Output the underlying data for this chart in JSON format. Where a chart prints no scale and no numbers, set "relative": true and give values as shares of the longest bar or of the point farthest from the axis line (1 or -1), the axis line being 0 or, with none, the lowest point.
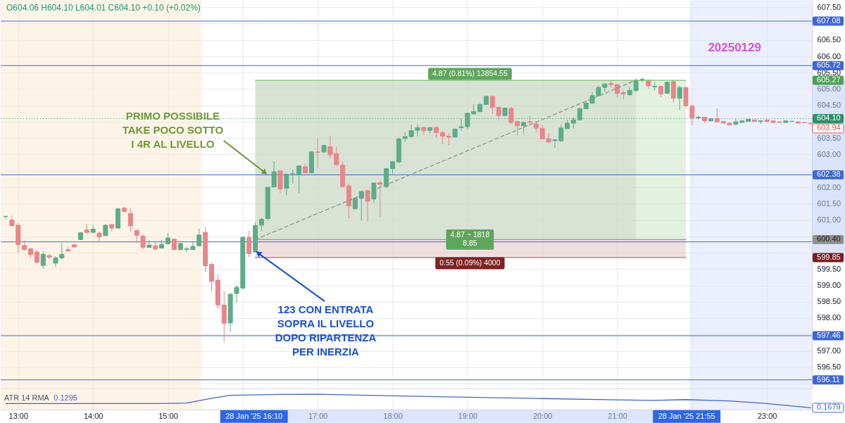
{
  "chart_data": [
    {
      "type": "candlestick",
      "x": [
        "2025-01-28T12:50",
        "2025-01-28T12:55",
        "2025-01-28T13:00",
        "2025-01-28T13:05",
        "2025-01-28T13:10",
        "2025-01-28T13:15",
        "2025-01-28T13:20",
        "2025-01-28T13:25",
        "2025-01-28T13:30",
        "2025-01-28T13:35",
        "2025-01-28T13:40",
        "2025-01-28T13:45",
        "2025-01-28T13:50",
        "2025-01-28T13:55",
        "2025-01-28T14:00",
        "2025-01-28T14:05",
        "2025-01-28T14:10",
        "2025-01-28T14:15",
        "2025-01-28T14:20",
        "2025-01-28T14:25",
        "2025-01-28T14:30",
        "2025-01-28T14:35",
        "2025-01-28T14:40",
        "2025-01-28T14:45",
        "2025-01-28T14:50",
        "2025-01-28T14:55",
        "2025-01-28T15:00",
        "2025-01-28T15:05",
        "2025-01-28T15:10",
        "2025-01-28T15:15",
        "2025-01-28T15:20",
        "2025-01-28T15:25",
        "2025-01-28T15:30",
        "2025-01-28T15:35",
        "2025-01-28T15:40",
        "2025-01-28T15:45",
        "2025-01-28T15:50",
        "2025-01-28T15:55",
        "2025-01-28T16:00",
        "2025-01-28T16:05",
        "2025-01-28T16:10",
        "2025-01-28T16:15",
        "2025-01-28T16:20",
        "2025-01-28T16:25",
        "2025-01-28T16:30",
        "2025-01-28T16:35",
        "2025-01-28T16:40",
        "2025-01-28T16:45",
        "2025-01-28T16:50",
        "2025-01-28T16:55",
        "2025-01-28T17:00",
        "2025-01-28T17:05",
        "2025-01-28T17:10",
        "2025-01-28T17:15",
        "2025-01-28T17:20",
        "2025-01-28T17:25",
        "2025-01-28T17:30",
        "2025-01-28T17:35",
        "2025-01-28T17:40",
        "2025-01-28T17:45",
        "2025-01-28T17:50",
        "2025-01-28T17:55",
        "2025-01-28T18:00",
        "2025-01-28T18:05",
        "2025-01-28T18:10",
        "2025-01-28T18:15",
        "2025-01-28T18:20",
        "2025-01-28T18:25",
        "2025-01-28T18:30",
        "2025-01-28T18:35",
        "2025-01-28T18:40",
        "2025-01-28T18:45",
        "2025-01-28T18:50",
        "2025-01-28T18:55",
        "2025-01-28T19:00",
        "2025-01-28T19:05",
        "2025-01-28T19:10",
        "2025-01-28T19:15",
        "2025-01-28T19:20",
        "2025-01-28T19:25",
        "2025-01-28T19:30",
        "2025-01-28T19:35",
        "2025-01-28T19:40",
        "2025-01-28T19:45",
        "2025-01-28T19:50",
        "2025-01-28T19:55",
        "2025-01-28T20:00",
        "2025-01-28T20:05",
        "2025-01-28T20:10",
        "2025-01-28T20:15",
        "2025-01-28T20:20",
        "2025-01-28T20:25",
        "2025-01-28T20:30",
        "2025-01-28T20:35",
        "2025-01-28T20:40",
        "2025-01-28T20:45",
        "2025-01-28T20:50",
        "2025-01-28T20:55",
        "2025-01-28T21:00",
        "2025-01-28T21:05",
        "2025-01-28T21:10",
        "2025-01-28T21:15",
        "2025-01-28T21:20",
        "2025-01-28T21:25",
        "2025-01-28T21:30",
        "2025-01-28T21:35",
        "2025-01-28T21:40",
        "2025-01-28T21:45",
        "2025-01-28T21:50",
        "2025-01-28T21:55",
        "2025-01-28T22:00",
        "2025-01-28T22:05",
        "2025-01-28T22:10",
        "2025-01-28T22:15",
        "2025-01-28T22:20",
        "2025-01-28T22:25",
        "2025-01-28T22:30",
        "2025-01-28T22:35",
        "2025-01-28T22:40",
        "2025-01-28T22:45",
        "2025-01-28T22:50",
        "2025-01-28T22:55",
        "2025-01-28T23:00",
        "2025-01-28T23:05",
        "2025-01-28T23:10",
        "2025-01-28T23:15",
        "2025-01-28T23:20",
        "2025-01-28T23:25",
        "2025-01-28T23:30",
        "2025-01-28T23:35"
      ],
      "ohlc": [
        [
          601.1,
          601.11,
          601.02,
          601.11
        ],
        [
          601.0,
          601.13,
          600.82,
          600.82
        ],
        [
          600.84,
          600.91,
          599.99,
          600.25
        ],
        [
          600.22,
          600.37,
          600.07,
          600.09
        ],
        [
          600.12,
          600.13,
          599.84,
          599.94
        ],
        [
          600.02,
          600.09,
          599.64,
          599.71
        ],
        [
          599.61,
          600.04,
          599.51,
          599.95
        ],
        [
          599.91,
          599.96,
          599.8,
          599.86
        ],
        [
          599.68,
          599.89,
          599.56,
          599.84
        ],
        [
          599.84,
          600.3,
          599.79,
          599.95
        ],
        [
          600.09,
          600.19,
          600.04,
          600.05
        ],
        [
          600.24,
          600.27,
          600.17,
          600.17
        ],
        [
          600.4,
          600.62,
          600.39,
          600.61
        ],
        [
          600.7,
          600.87,
          600.55,
          600.62
        ],
        [
          600.62,
          600.85,
          600.62,
          600.72
        ],
        [
          600.6,
          600.64,
          600.35,
          600.48
        ],
        [
          600.52,
          600.87,
          600.52,
          600.84
        ],
        [
          600.86,
          600.87,
          600.64,
          600.75
        ],
        [
          600.75,
          601.36,
          600.75,
          601.34
        ],
        [
          601.36,
          601.4,
          601.22,
          601.26
        ],
        [
          601.2,
          601.36,
          600.64,
          600.82
        ],
        [
          600.68,
          600.7,
          600.29,
          600.53
        ],
        [
          600.5,
          600.55,
          600.1,
          600.16
        ],
        [
          600.16,
          600.39,
          600.16,
          600.23
        ],
        [
          600.21,
          600.37,
          600.07,
          600.11
        ],
        [
          600.14,
          600.39,
          600.14,
          600.25
        ],
        [
          600.27,
          600.6,
          600.27,
          600.45
        ],
        [
          600.41,
          600.42,
          600.09,
          600.09
        ],
        [
          600.09,
          600.28,
          600.09,
          600.28
        ],
        [
          600.1,
          600.18,
          600.02,
          600.12
        ],
        [
          600.09,
          600.32,
          600.09,
          600.19
        ],
        [
          600.21,
          600.73,
          600.21,
          600.54
        ],
        [
          600.62,
          600.79,
          599.41,
          599.6
        ],
        [
          599.64,
          599.69,
          598.8,
          599.12
        ],
        [
          599.16,
          599.34,
          598.29,
          598.4
        ],
        [
          598.4,
          598.83,
          597.27,
          597.84
        ],
        [
          597.85,
          598.74,
          597.58,
          598.73
        ],
        [
          598.75,
          599.01,
          598.47,
          598.94
        ],
        [
          598.91,
          600.5,
          598.91,
          600.47
        ],
        [
          600.47,
          600.68,
          599.87,
          599.97
        ],
        [
          600.02,
          600.93,
          600.02,
          600.83
        ],
        [
          600.84,
          601.07,
          600.66,
          601.02
        ],
        [
          601.04,
          602.02,
          600.98,
          602.0
        ],
        [
          602.01,
          602.8,
          602.0,
          602.47
        ],
        [
          602.5,
          602.52,
          601.82,
          601.95
        ],
        [
          601.97,
          602.42,
          601.76,
          602.4
        ],
        [
          602.41,
          602.54,
          602.11,
          602.42
        ],
        [
          602.38,
          602.67,
          601.81,
          602.65
        ],
        [
          602.63,
          602.72,
          602.44,
          602.44
        ],
        [
          602.44,
          603.1,
          602.44,
          603.08
        ],
        [
          603.08,
          603.49,
          602.57,
          603.07
        ],
        [
          603.08,
          603.29,
          603.05,
          603.28
        ],
        [
          603.24,
          603.58,
          602.88,
          602.99
        ],
        [
          603.03,
          603.24,
          602.65,
          602.69
        ],
        [
          602.67,
          602.79,
          602.0,
          602.02
        ],
        [
          602.04,
          602.11,
          601.04,
          601.43
        ],
        [
          601.34,
          601.68,
          601.33,
          601.66
        ],
        [
          601.66,
          601.91,
          600.98,
          601.87
        ],
        [
          601.9,
          601.93,
          600.96,
          601.57
        ],
        [
          601.64,
          602.14,
          601.52,
          602.13
        ],
        [
          602.14,
          602.19,
          601.09,
          602.09
        ],
        [
          602.02,
          602.59,
          601.97,
          602.57
        ],
        [
          602.57,
          602.79,
          602.42,
          602.78
        ],
        [
          602.77,
          603.53,
          602.75,
          603.48
        ],
        [
          603.49,
          603.69,
          603.38,
          603.55
        ],
        [
          603.55,
          603.91,
          603.51,
          603.73
        ],
        [
          603.74,
          603.92,
          603.56,
          603.82
        ],
        [
          603.83,
          603.85,
          603.6,
          603.73
        ],
        [
          603.74,
          603.85,
          603.65,
          603.82
        ],
        [
          603.83,
          603.87,
          603.51,
          603.67
        ],
        [
          603.67,
          603.72,
          603.31,
          603.56
        ],
        [
          603.56,
          603.65,
          603.29,
          603.53
        ],
        [
          603.53,
          603.79,
          603.53,
          603.78
        ],
        [
          603.82,
          604.08,
          603.72,
          603.85
        ],
        [
          603.85,
          604.28,
          603.78,
          604.26
        ],
        [
          604.24,
          604.54,
          604.23,
          604.31
        ],
        [
          604.31,
          604.57,
          604.3,
          604.53
        ],
        [
          604.53,
          604.8,
          604.53,
          604.78
        ],
        [
          604.78,
          604.8,
          604.24,
          604.44
        ],
        [
          604.44,
          604.46,
          604.04,
          604.19
        ],
        [
          604.19,
          604.44,
          604.17,
          604.42
        ],
        [
          604.41,
          604.46,
          603.92,
          603.98
        ],
        [
          604.01,
          604.03,
          603.58,
          603.88
        ],
        [
          603.88,
          604.01,
          603.63,
          603.98
        ],
        [
          604.01,
          604.19,
          603.88,
          603.99
        ],
        [
          603.94,
          603.98,
          603.68,
          603.81
        ],
        [
          603.8,
          603.91,
          603.47,
          603.48
        ],
        [
          603.48,
          603.65,
          603.38,
          603.38
        ],
        [
          603.43,
          603.45,
          603.21,
          603.45
        ],
        [
          603.42,
          603.91,
          603.38,
          603.81
        ],
        [
          603.79,
          604.06,
          603.79,
          603.96
        ],
        [
          603.96,
          604.14,
          603.79,
          604.06
        ],
        [
          604.06,
          604.44,
          604.06,
          604.4
        ],
        [
          604.4,
          604.64,
          604.39,
          604.57
        ],
        [
          604.57,
          604.9,
          604.55,
          604.8
        ],
        [
          604.8,
          605.1,
          604.78,
          605.05
        ],
        [
          605.05,
          605.17,
          604.92,
          605.16
        ],
        [
          605.17,
          605.25,
          605.05,
          605.14
        ],
        [
          605.14,
          605.15,
          604.74,
          604.87
        ],
        [
          604.89,
          604.95,
          604.69,
          604.85
        ],
        [
          604.83,
          605.05,
          604.78,
          604.96
        ],
        [
          604.96,
          605.32,
          604.9,
          605.27
        ],
        [
          605.27,
          605.37,
          605.21,
          605.3
        ],
        [
          605.27,
          605.28,
          605.01,
          605.1
        ],
        [
          605.07,
          605.21,
          604.96,
          605.09
        ],
        [
          605.09,
          605.1,
          604.76,
          604.85
        ],
        [
          604.87,
          605.23,
          604.85,
          605.21
        ],
        [
          605.23,
          605.25,
          604.58,
          604.72
        ],
        [
          604.72,
          605.1,
          604.37,
          605.05
        ],
        [
          605.05,
          605.08,
          604.42,
          604.49
        ],
        [
          604.48,
          604.53,
          603.89,
          604.12
        ],
        [
          604.12,
          604.19,
          604.07,
          604.14
        ],
        [
          604.14,
          604.15,
          603.96,
          604.03
        ],
        [
          604.03,
          604.11,
          604.01,
          604.09
        ],
        [
          604.1,
          604.41,
          603.98,
          604.0
        ],
        [
          604.01,
          604.03,
          603.95,
          603.96
        ],
        [
          603.96,
          603.98,
          603.9,
          603.91
        ],
        [
          603.93,
          604.08,
          603.88,
          604.0
        ],
        [
          603.98,
          604.05,
          603.98,
          604.03
        ],
        [
          604.01,
          604.09,
          604.01,
          604.08
        ],
        [
          604.06,
          604.06,
          604.01,
          604.01
        ],
        [
          604.01,
          604.04,
          603.93,
          604.03
        ],
        [
          604.06,
          604.07,
          603.99,
          604.01
        ],
        [
          604.03,
          604.04,
          603.96,
          603.98
        ],
        [
          604.0,
          604.0,
          603.97,
          603.98
        ],
        [
          603.98,
          604.04,
          603.97,
          604.03
        ],
        [
          604.01,
          604.02,
          604.01,
          604.02
        ],
        [
          604.0,
          604.01,
          603.96,
          603.96
        ],
        [
          603.98,
          603.99,
          603.97,
          603.97
        ],
        [
          603.96,
          603.96,
          603.94,
          603.94
        ]
      ],
      "colors": [
        "#5dac89",
        "#e8868a",
        "#e8868a",
        "#e8868a",
        "#e8868a",
        "#e8868a",
        "#5dac89",
        "#e8868a",
        "#5dac89",
        "#5dac89",
        "#e8868a",
        "#e8868a",
        "#5dac89",
        "#e8868a",
        "#5dac89",
        "#e8868a",
        "#5dac89",
        "#e8868a",
        "#5dac89",
        "#e8868a",
        "#e8868a",
        "#e8868a",
        "#e8868a",
        "#5dac89",
        "#e8868a",
        "#5dac89",
        "#5dac89",
        "#e8868a",
        "#5dac89",
        "#5dac89",
        "#5dac89",
        "#5dac89",
        "#e8868a",
        "#e8868a",
        "#e8868a",
        "#e8868a",
        "#5dac89",
        "#5dac89",
        "#5dac89",
        "#e8868a",
        "#5dac89",
        "#5dac89",
        "#5dac89",
        "#5dac89",
        "#e8868a",
        "#5dac89",
        "#5dac89",
        "#5dac89",
        "#e8868a",
        "#5dac89",
        "#e8868a",
        "#5dac89",
        "#e8868a",
        "#e8868a",
        "#e8868a",
        "#e8868a",
        "#5dac89",
        "#5dac89",
        "#e8868a",
        "#5dac89",
        "#e8868a",
        "#5dac89",
        "#5dac89",
        "#5dac89",
        "#5dac89",
        "#5dac89",
        "#5dac89",
        "#e8868a",
        "#5dac89",
        "#e8868a",
        "#e8868a",
        "#e8868a",
        "#5dac89",
        "#5dac89",
        "#5dac89",
        "#5dac89",
        "#5dac89",
        "#5dac89",
        "#e8868a",
        "#e8868a",
        "#5dac89",
        "#e8868a",
        "#e8868a",
        "#5dac89",
        "#e8868a",
        "#e8868a",
        "#e8868a",
        "#e8868a",
        "#5dac89",
        "#5dac89",
        "#5dac89",
        "#5dac89",
        "#5dac89",
        "#5dac89",
        "#5dac89",
        "#5dac89",
        "#5dac89",
        "#e8868a",
        "#e8868a",
        "#e8868a",
        "#5dac89",
        "#5dac89",
        "#5dac89",
        "#e8868a",
        "#5dac89",
        "#e8868a",
        "#5dac89",
        "#e8868a",
        "#5dac89",
        "#e8868a",
        "#e8868a",
        "#5dac89",
        "#e8868a",
        "#5dac89",
        "#e8868a",
        "#e8868a",
        "#e8868a",
        "#5dac89",
        "#5dac89",
        "#5dac89",
        "#e8868a",
        "#5dac89",
        "#e8868a",
        "#e8868a",
        "#e8868a",
        "#5dac89",
        "#5dac89",
        "#e8868a",
        "#e8868a",
        "#e8868a"
      ],
      "series": [
        {
          "type": "line",
          "x": [
            "2025-01-28T16:10",
            "2025-01-28T21:55"
          ],
          "values": [
            605.27,
            605.27
          ],
          "lower": [
            600.4,
            600.4
          ],
          "upper": [
            605.27,
            605.27
          ],
          "color": "#84bf72"
        },
        {
          "type": "line",
          "x": [
            "2025-01-28T16:10",
            "2025-01-28T21:55"
          ],
          "values": [
            599.85,
            599.85
          ],
          "lower": [
            599.85,
            599.85
          ],
          "upper": [
            600.4,
            600.4
          ],
          "color": "#b66e6e"
        },
        {
          "type": "line",
          "x": [
            "2025-01-28T16:10",
            "2025-01-28T21:55"
          ],
          "values": [
            600.4,
            600.4
          ],
          "color": "#8a9bb2"
        },
        {
          "type": "line",
          "x": [
            "2025-01-28T16:10",
            "2025-01-28T21:15"
          ],
          "values": [
            600.4,
            605.27
          ],
          "lower": [
            600.4,
            600.4
          ],
          "upper": [
            605.27,
            605.27
          ],
          "color": "#889a84",
          "line_style": "dashed"
        }
      ],
      "xlim": [
        "2025-01-28T12:46",
        "2025-01-28T23:36"
      ],
      "xticks": [
        {
          "value": "2025-01-28T13:00",
          "label": null
        },
        {
          "value": "2025-01-28T14:00",
          "label": null
        },
        {
          "value": "2025-01-28T15:00",
          "label": null
        },
        {
          "value": "2025-01-28T16:00",
          "label": null
        },
        {
          "value": "2025-01-28T17:00",
          "label": null
        },
        {
          "value": "2025-01-28T18:00",
          "label": null
        },
        {
          "value": "2025-01-28T19:00",
          "label": null
        },
        {
          "value": "2025-01-28T20:00",
          "label": null
        },
        {
          "value": "2025-01-28T21:00",
          "label": null
        },
        {
          "value": "2025-01-28T22:00",
          "label": null
        },
        {
          "value": "2025-01-28T23:00",
          "label": null
        }
      ],
      "ylim": [
        595.85,
        607.72
      ],
      "yticks": [
        {
          "value": 596.0,
          "label": null
        },
        {
          "value": 596.5,
          "label": "596.50"
        },
        {
          "value": 597.0,
          "label": "597.00"
        },
        {
          "value": 597.5,
          "label": null
        },
        {
          "value": 598.0,
          "label": "598.00"
        },
        {
          "value": 598.5,
          "label": "598.50"
        },
        {
          "value": 599.0,
          "label": "599.00"
        },
        {
          "value": 599.5,
          "label": "599.50"
        },
        {
          "value": 600.0,
          "label": null
        },
        {
          "value": 600.5,
          "label": null
        },
        {
          "value": 601.0,
          "label": "601.00"
        },
        {
          "value": 601.5,
          "label": "601.50"
        },
        {
          "value": 602.0,
          "label": "602.00"
        },
        {
          "value": 602.5,
          "label": null
        },
        {
          "value": 603.0,
          "label": "603.00"
        },
        {
          "value": 603.5,
          "label": "603.50"
        },
        {
          "value": 604.0,
          "label": null
        },
        {
          "value": 604.5,
          "label": "604.50"
        },
        {
          "value": 605.0,
          "label": "605.00"
        },
        {
          "value": 605.5,
          "label": "605.50"
        },
        {
          "value": 606.0,
          "label": "606.00"
        },
        {
          "value": 606.5,
          "label": "606.50"
        },
        {
          "value": 607.0,
          "label": null
        },
        {
          "value": 607.5,
          "label": "607.50"
        }
      ],
      "ref_lines": [
        {
          "axis": "y",
          "value": 607.08,
          "label": "607.08",
          "color": "#3d66d6"
        },
        {
          "axis": "y",
          "value": 605.72,
          "label": "605.72",
          "color": "#3d66d6"
        },
        {
          "axis": "y",
          "value": 604.1,
          "label": "604.10",
          "color": "#2f8f66",
          "line_style": "dotted"
        },
        {
          "axis": "y",
          "value": 602.38,
          "label": "602.38",
          "color": "#3d66d6"
        },
        {
          "axis": "y",
          "value": 600.33,
          "color": "#3d66d6"
        },
        {
          "axis": "y",
          "value": 597.46,
          "label": "597.46",
          "color": "#3d66d6"
        },
        {
          "axis": "y",
          "value": 596.11,
          "label": "596.11",
          "color": "#3d66d6"
        }
      ],
      "bands": [
        {
          "axis": "x",
          "from": "2025-01-28T12:46",
          "to": "2025-01-28T15:27",
          "color": "#fdf4e8"
        },
        {
          "axis": "x",
          "from": "2025-01-28T21:58",
          "to": "2025-01-28T23:36",
          "color": "#ebf0fc"
        }
      ],
      "annotations": [
        "O604.06 H604.10 L604.01 C604.10 +0.10 (+0.02%)",
        "20250129",
        {
          "text": "PRIMO POSSIBILE\nTAKE POCO SOTTO\nI 4R AL LIVELLO",
          "x": "2025-01-28T16:20",
          "y": 602.38
        },
        {
          "text": "123 CON ENTRATA\nSOPRA IL LIVELLO\nDOPO RIPARTENZA\nPER INERZIA",
          "x": "2025-01-28T16:10",
          "y": 600.05
        },
        {
          "text": "4.87 (0.81%) 13854.55",
          "x": "2025-01-28T19:02",
          "y": 605.27
        },
        {
          "text": "4.87 ~ 1818\n8.85",
          "x": "2025-01-28T19:02",
          "y": 600.4
        },
        {
          "text": "0.55 (0.09%) 4000",
          "x": "2025-01-28T19:02",
          "y": 599.85
        },
        {
          "text": "603.94",
          "x": "2025-01-28T23:35",
          "y": 603.94
        },
        "605.27",
        "600.40",
        "599.85"
      ],
      "grid": true,
      "tick_labels": "y"
    },
    {
      "type": "line",
      "title": "ATR 14 RMA",
      "relative": true,
      "x": [
        "2025-01-28T12:50",
        "2025-01-28T13:45",
        "2025-01-28T14:45",
        "2025-01-28T15:15",
        "2025-01-28T15:35",
        "2025-01-28T15:50",
        "2025-01-28T16:30",
        "2025-01-28T17:00",
        "2025-01-28T18:00",
        "2025-01-28T19:00",
        "2025-01-28T20:00",
        "2025-01-28T21:00",
        "2025-01-28T21:30",
        "2025-01-28T21:55",
        "2025-01-28T22:30",
        "2025-01-28T23:00",
        "2025-01-28T23:35"
      ],
      "series": [
        {
          "color": "#4066cc",
          "values": [
            0.39,
            0.39,
            0.39,
            0.42,
            0.74,
            0.93,
            0.99,
            1,
            0.9,
            0.81,
            0.72,
            0.63,
            0.6,
            0.65,
            0.56,
            0.39,
            0.11
          ]
        }
      ],
      "annotations": [
        "0.1295",
        "0.1679",
        "28 Jan '25 16:10",
        "28 Jan '25 21:55"
      ],
      "xlim": [
        "2025-01-28T12:46",
        "2025-01-28T23:36"
      ],
      "xticks": [
        {
          "value": "2025-01-28T13:00",
          "label": "13:00"
        },
        {
          "value": "2025-01-28T14:00",
          "label": "14:00"
        },
        {
          "value": "2025-01-28T15:00",
          "label": "15:00"
        },
        {
          "value": "2025-01-28T16:00",
          "label": null
        },
        {
          "value": "2025-01-28T17:00",
          "label": "17:00"
        },
        {
          "value": "2025-01-28T18:00",
          "label": "18:00"
        },
        {
          "value": "2025-01-28T19:00",
          "label": "19:00"
        },
        {
          "value": "2025-01-28T20:00",
          "label": "20:00"
        },
        {
          "value": "2025-01-28T21:00",
          "label": "21:00"
        },
        {
          "value": "2025-01-28T22:00",
          "label": null
        },
        {
          "value": "2025-01-28T23:00",
          "label": "23:00"
        }
      ],
      "bands": [
        {
          "axis": "x",
          "from": "2025-01-28T12:46",
          "to": "2025-01-28T15:27",
          "color": "#fdf4e8"
        },
        {
          "axis": "x",
          "from": "2025-01-28T21:58",
          "to": "2025-01-28T23:36",
          "color": "#ebf0fc"
        }
      ],
      "grid": "x",
      "tick_labels": "x"
    }
  ]
}
